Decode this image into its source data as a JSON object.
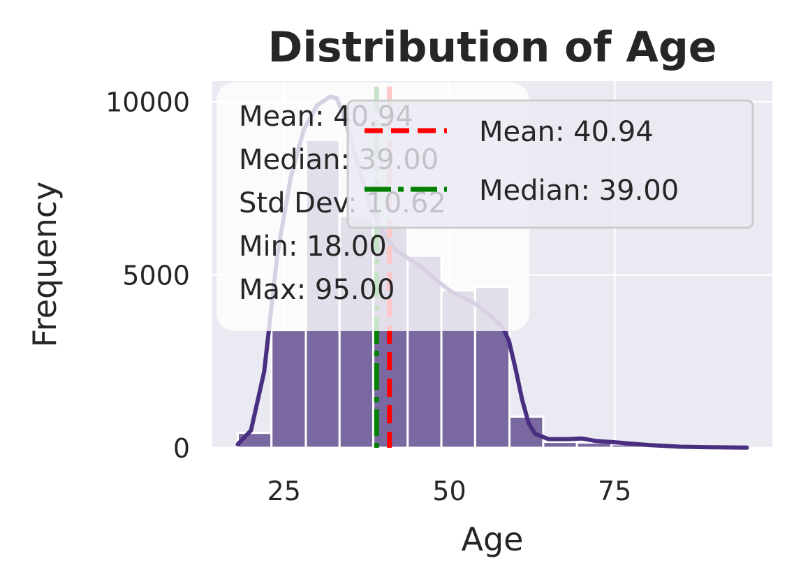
{
  "chart_data": {
    "type": "bar",
    "title": "Distribution of Age",
    "xlabel": "Age",
    "ylabel": "Frequency",
    "xlim": [
      14.15,
      98.85
    ],
    "ylim": [
      0,
      10600
    ],
    "xticks": [
      25,
      50,
      75
    ],
    "yticks": [
      0,
      5000,
      10000
    ],
    "grid": true,
    "bins": [
      {
        "x0": 18.0,
        "x1": 23.1,
        "count": 430
      },
      {
        "x0": 23.1,
        "x1": 28.3,
        "count": 3400
      },
      {
        "x0": 28.3,
        "x1": 33.4,
        "count": 8900
      },
      {
        "x0": 33.4,
        "x1": 38.5,
        "count": 6700
      },
      {
        "x0": 38.5,
        "x1": 43.7,
        "count": 6450
      },
      {
        "x0": 43.7,
        "x1": 48.8,
        "count": 5550
      },
      {
        "x0": 48.8,
        "x1": 53.9,
        "count": 4550
      },
      {
        "x0": 53.9,
        "x1": 59.1,
        "count": 4650
      },
      {
        "x0": 59.1,
        "x1": 64.2,
        "count": 900
      },
      {
        "x0": 64.2,
        "x1": 69.3,
        "count": 170
      },
      {
        "x0": 69.3,
        "x1": 74.5,
        "count": 150
      },
      {
        "x0": 74.5,
        "x1": 79.6,
        "count": 100
      },
      {
        "x0": 79.6,
        "x1": 84.7,
        "count": 50
      },
      {
        "x0": 84.7,
        "x1": 89.9,
        "count": 20
      },
      {
        "x0": 89.9,
        "x1": 95.0,
        "count": 10
      }
    ],
    "kde": {
      "x": [
        18,
        20,
        22,
        24,
        26,
        28,
        30,
        32,
        33,
        34,
        36,
        38,
        40,
        42,
        44,
        46,
        48,
        50,
        52,
        54,
        56,
        58,
        59,
        60,
        61,
        62,
        63,
        65,
        68,
        70,
        72,
        75,
        80,
        85,
        90,
        95
      ],
      "y": [
        100,
        500,
        2200,
        5600,
        7800,
        9200,
        9900,
        10150,
        10100,
        9600,
        8300,
        7000,
        6200,
        5700,
        5450,
        5200,
        4850,
        4550,
        4350,
        4150,
        3850,
        3500,
        3100,
        2300,
        1400,
        700,
        400,
        250,
        250,
        270,
        200,
        160,
        80,
        30,
        15,
        5
      ]
    },
    "mean": 40.94,
    "median": 39.0,
    "legend": {
      "position": "upper right",
      "entries": [
        {
          "label": "Mean: 40.94",
          "color": "#ff0000",
          "style": "dashed"
        },
        {
          "label": "Median: 39.00",
          "color": "#008000",
          "style": "dashdot"
        }
      ]
    },
    "stats_box": {
      "position": "upper left",
      "lines": [
        "Mean: 40.94",
        "Median: 39.00",
        "Std Dev: 10.62",
        "Min: 18.00",
        "Max: 95.00"
      ]
    },
    "colors": {
      "background": "#eaeaf2",
      "bar": "#7a69a1",
      "kde": "#4a2f80",
      "grid": "#ffffff"
    }
  }
}
